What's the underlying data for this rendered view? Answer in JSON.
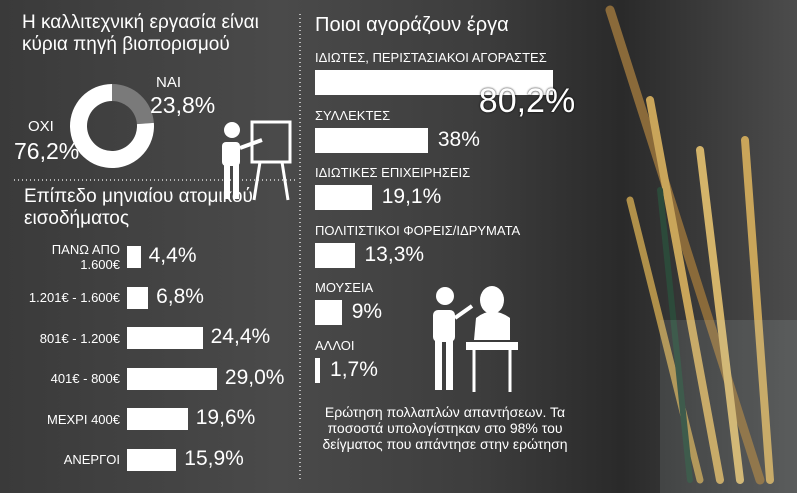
{
  "chart_data": [
    {
      "type": "donut",
      "title": "Η καλλιτεχνική εργασία είναι κύρια πηγή βιοπορισμού",
      "categories": [
        "ΝΑΙ",
        "ΟΧΙ"
      ],
      "values": [
        23.8,
        76.2
      ],
      "value_labels": [
        "23,8%",
        "76,2%"
      ],
      "colors": [
        "#7a7a7a",
        "#ffffff"
      ]
    },
    {
      "type": "hbar",
      "title": "Επίπεδο μηνιαίου ατομικού εισοδήματος",
      "categories": [
        "ΠΑΝΩ ΑΠΟ 1.600€",
        "1.201€ - 1.600€",
        "801€ - 1.200€",
        "401€ - 800€",
        "ΜΕΧΡΙ 400€",
        "ΑΝΕΡΓΟΙ"
      ],
      "values": [
        4.4,
        6.8,
        24.4,
        29.0,
        19.6,
        15.9
      ],
      "value_labels": [
        "4,4%",
        "6,8%",
        "24,4%",
        "29,0%",
        "19,6%",
        "15,9%"
      ],
      "color": "#ffffff"
    },
    {
      "type": "hbar-stacked-label",
      "title": "Ποιοι αγοράζουν έργα",
      "categories": [
        "ΙΔΙΩΤΕΣ, ΠΕΡΙΣΤΑΣΙΑΚΟΙ ΑΓΟΡΑΣΤΕΣ",
        "ΣΥΛΛΕΚΤΕΣ",
        "ΙΔΙΩΤΙΚΕΣ ΕΠΙΧΕΙΡΗΣΕΙΣ",
        "ΠΟΛΙΤΙΣΤΙΚΟΙ ΦΟΡΕΙΣ/ΙΔΡΥΜΑΤΑ",
        "ΜΟΥΣΕΙΑ",
        "ΑΛΛΟΙ"
      ],
      "values": [
        80.2,
        38,
        19.1,
        13.3,
        9,
        1.7
      ],
      "value_labels": [
        "80,2%",
        "38%",
        "19,1%",
        "13,3%",
        "9%",
        "1,7%"
      ],
      "color": "#ffffff",
      "note": "Ερώτηση πολλαπλών απαντήσεων. Τα ποσοστά υπολογίστηκαν στο 98% του δείγματος που απάντησε στην ερώτηση"
    }
  ]
}
